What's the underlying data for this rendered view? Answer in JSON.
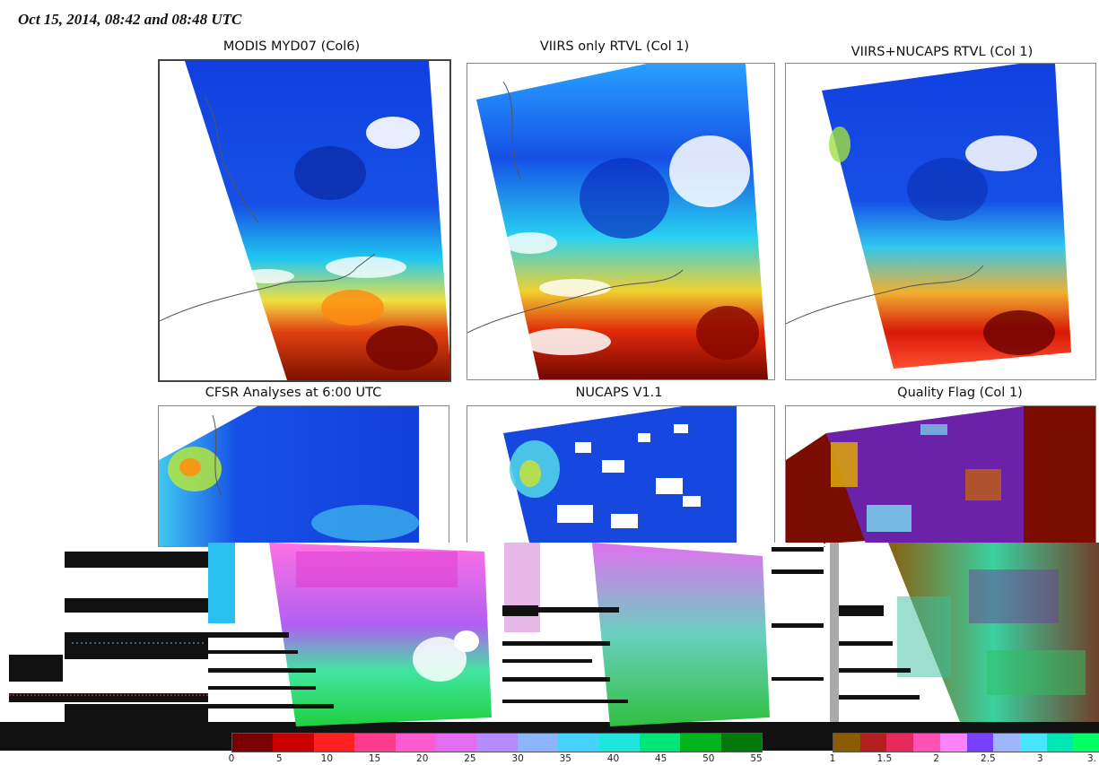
{
  "header": {
    "title": "Oct 15, 2014, 08:42 and 08:48 UTC"
  },
  "panels": [
    {
      "title": "MODIS MYD07 (Col6)"
    },
    {
      "title": "VIIRS only RTVL (Col 1)"
    },
    {
      "title": "VIIRS+NUCAPS RTVL (Col 1)"
    },
    {
      "title": "CFSR Analyses at 6:00 UTC"
    },
    {
      "title": "NUCAPS V1.1"
    },
    {
      "title": "Quality Flag (Col 1)"
    }
  ],
  "colorbar_main": {
    "ticks": [
      "0",
      "5",
      "10",
      "15",
      "20",
      "25",
      "30",
      "35",
      "40",
      "45",
      "50",
      "55"
    ],
    "colors": [
      "#7a0000",
      "#c80000",
      "#ff2020",
      "#ff3c8c",
      "#ff5ad2",
      "#e46cf0",
      "#b48cff",
      "#8cb4ff",
      "#46d2ff",
      "#1ee6dc",
      "#00e678",
      "#00b41e",
      "#00780a"
    ]
  },
  "colorbar_flag": {
    "ticks": [
      "1",
      "1.5",
      "2",
      "2.5",
      "3",
      "3."
    ],
    "colors": [
      "#8c5a00",
      "#b41e1e",
      "#e6285a",
      "#ff50b4",
      "#ff82ff",
      "#7840ff",
      "#a0b4ff",
      "#46e6ff",
      "#00e6b4",
      "#00ff64"
    ]
  }
}
